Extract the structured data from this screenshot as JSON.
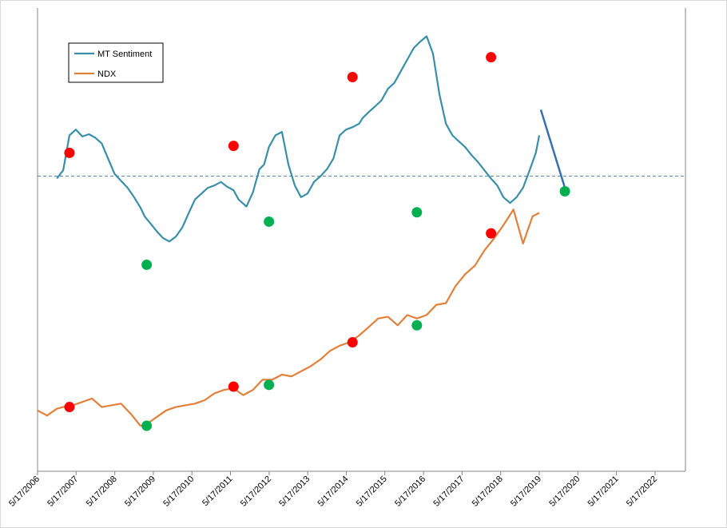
{
  "chart_data": {
    "type": "line",
    "title": "",
    "xlabel": "",
    "ylabel": "",
    "x_tick_labels": [
      "5/17/2006",
      "5/17/2007",
      "5/17/2008",
      "5/17/2009",
      "5/17/2010",
      "5/17/2011",
      "5/17/2012",
      "5/17/2013",
      "5/17/2014",
      "5/17/2015",
      "5/17/2016",
      "5/17/2017",
      "5/17/2018",
      "5/17/2019",
      "5/17/2020",
      "5/17/2021",
      "5/17/2022"
    ],
    "x_range": [
      "2006-05-17",
      "2023-03-01"
    ],
    "y_axis_labels": "none",
    "grid": false,
    "legend_position": "top-left",
    "colors": {
      "sentiment": "#3a8fa8",
      "ndx": "#e0803a",
      "projection": "#3a6fb0",
      "peak_marker": "#ff0000",
      "trough_marker": "#00b050",
      "threshold": "#5a8ab0"
    },
    "series": [
      {
        "name": "MT Sentiment",
        "x": [
          "2006-11-15",
          "2007-01-15",
          "2007-03-15",
          "2007-05-15",
          "2007-07-15",
          "2007-09-15",
          "2007-11-15",
          "2008-01-15",
          "2008-03-15",
          "2008-05-15",
          "2008-07-15",
          "2008-09-15",
          "2008-11-15",
          "2009-01-15",
          "2009-02-27",
          "2009-04-15",
          "2009-06-15",
          "2009-08-15",
          "2009-10-15",
          "2009-12-15",
          "2010-02-15",
          "2010-04-15",
          "2010-06-15",
          "2010-08-15",
          "2010-10-15",
          "2010-12-15",
          "2011-02-15",
          "2011-04-15",
          "2011-06-15",
          "2011-08-01",
          "2011-10-15",
          "2011-12-15",
          "2012-02-15",
          "2012-03-30",
          "2012-05-15",
          "2012-07-15",
          "2012-09-15",
          "2012-11-15",
          "2013-01-15",
          "2013-03-15",
          "2013-05-15",
          "2013-07-15",
          "2013-09-15",
          "2013-11-15",
          "2014-01-15",
          "2014-03-15",
          "2014-05-15",
          "2014-07-15",
          "2014-09-15",
          "2014-10-20",
          "2014-12-15",
          "2015-02-15",
          "2015-04-15",
          "2015-06-15",
          "2015-08-15",
          "2015-10-15",
          "2015-12-15",
          "2016-02-15",
          "2016-04-11",
          "2016-06-15",
          "2016-08-15",
          "2016-10-15",
          "2016-12-15",
          "2017-02-15",
          "2017-04-15",
          "2017-06-15",
          "2017-08-15",
          "2017-10-15",
          "2017-12-15",
          "2018-02-15",
          "2018-04-15",
          "2018-06-11",
          "2018-08-15",
          "2018-10-15",
          "2018-12-15",
          "2019-02-15",
          "2019-04-15",
          "2019-05-17"
        ],
        "y": [
          -0.2,
          0.5,
          3.5,
          4.0,
          3.4,
          3.6,
          3.3,
          2.8,
          1.5,
          0.2,
          -0.4,
          -1.0,
          -1.8,
          -2.7,
          -3.5,
          -4.0,
          -4.7,
          -5.3,
          -5.6,
          -5.2,
          -4.4,
          -3.2,
          -2.0,
          -1.5,
          -1.0,
          -0.8,
          -0.5,
          -0.9,
          -1.2,
          -2.0,
          -2.6,
          -1.4,
          0.6,
          1.0,
          2.5,
          3.5,
          3.8,
          1.0,
          -0.8,
          -1.8,
          -1.5,
          -0.5,
          0.0,
          0.6,
          1.5,
          3.5,
          4.0,
          4.2,
          4.5,
          5.0,
          5.5,
          6.0,
          6.5,
          7.5,
          8.0,
          9.0,
          10.0,
          11.0,
          11.5,
          12.0,
          10.5,
          7.0,
          4.5,
          3.5,
          3.0,
          2.5,
          1.8,
          1.2,
          0.5,
          -0.2,
          -0.8,
          -1.8,
          -2.3,
          -1.8,
          -1.0,
          0.5,
          2.0,
          3.5
        ]
      },
      {
        "name": "NDX",
        "x": [
          "2006-05-17",
          "2006-08-15",
          "2006-11-15",
          "2007-01-15",
          "2007-04-15",
          "2007-07-15",
          "2007-10-15",
          "2008-01-15",
          "2008-04-15",
          "2008-07-15",
          "2008-10-15",
          "2009-01-15",
          "2009-03-15",
          "2009-06-15",
          "2009-09-15",
          "2009-12-15",
          "2010-03-15",
          "2010-06-15",
          "2010-09-15",
          "2010-12-15",
          "2011-03-15",
          "2011-06-15",
          "2011-09-15",
          "2011-12-15",
          "2012-03-15",
          "2012-06-15",
          "2012-09-15",
          "2012-12-15",
          "2013-03-15",
          "2013-06-15",
          "2013-09-15",
          "2013-12-15",
          "2014-03-15",
          "2014-06-15",
          "2014-09-15",
          "2014-12-15",
          "2015-03-15",
          "2015-06-15",
          "2015-09-15",
          "2015-12-15",
          "2016-03-15",
          "2016-06-15",
          "2016-09-15",
          "2016-12-15",
          "2017-03-15",
          "2017-06-15",
          "2017-09-15",
          "2017-12-15",
          "2018-03-15",
          "2018-06-15",
          "2018-09-15",
          "2018-12-15",
          "2019-03-15",
          "2019-05-17"
        ],
        "y": [
          1700,
          1550,
          1750,
          1800,
          1850,
          1950,
          2050,
          1800,
          1850,
          1900,
          1600,
          1250,
          1300,
          1500,
          1700,
          1800,
          1850,
          1900,
          2000,
          2200,
          2300,
          2350,
          2150,
          2300,
          2600,
          2600,
          2750,
          2700,
          2850,
          3000,
          3200,
          3450,
          3600,
          3700,
          3900,
          4150,
          4400,
          4450,
          4200,
          4500,
          4400,
          4500,
          4800,
          4850,
          5350,
          5700,
          5950,
          6400,
          6750,
          7150,
          7600,
          6600,
          7400,
          7500
        ]
      }
    ],
    "sentiment_projection": {
      "x": [
        "2019-05-17",
        "2020-01-15"
      ],
      "y": [
        5.7,
        -1.0
      ]
    },
    "sentiment_threshold": 0.0,
    "sentiment_peaks": {
      "x": [
        "2007-03-15",
        "2011-06-15",
        "2014-07-15",
        "2018-02-15"
      ],
      "y": [
        2.0,
        2.6,
        8.5,
        10.2
      ]
    },
    "sentiment_troughs": {
      "x": [
        "2009-03-15",
        "2012-05-15",
        "2016-03-15",
        "2020-01-15"
      ],
      "y": [
        -7.6,
        -3.9,
        -3.1,
        -1.3
      ]
    },
    "ndx_peaks": {
      "x": [
        "2007-03-15",
        "2011-06-15",
        "2014-07-15",
        "2018-02-15"
      ],
      "y": [
        1800,
        2400,
        3700,
        6900
      ]
    },
    "ndx_troughs": {
      "x": [
        "2009-03-15",
        "2012-05-15",
        "2016-03-15"
      ],
      "y": [
        1250,
        2450,
        4200
      ]
    }
  }
}
